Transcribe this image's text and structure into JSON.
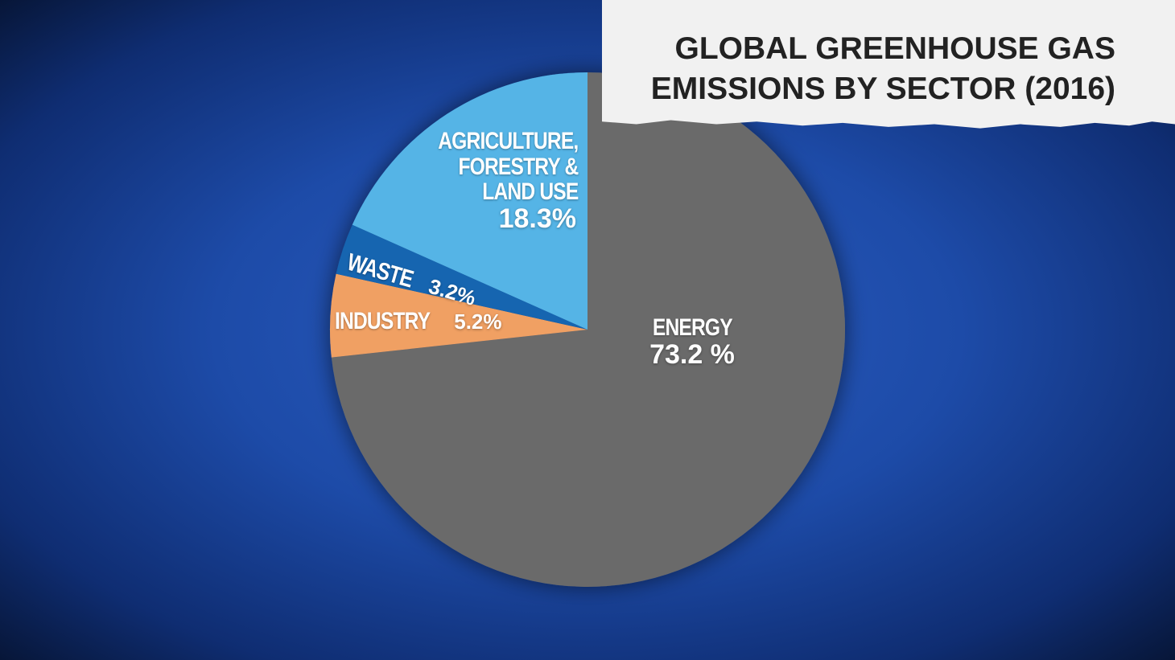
{
  "chart_data": {
    "type": "pie",
    "title": "GLOBAL GREENHOUSE GAS EMISSIONS BY SECTOR (2016)",
    "categories": [
      "ENERGY",
      "INDUSTRY",
      "WASTE",
      "AGRICULTURE, FORESTRY & LAND USE"
    ],
    "values": [
      73.2,
      5.2,
      3.2,
      18.3
    ],
    "value_labels": [
      "73.2 %",
      "5.2%",
      "3.2%",
      "18.3%"
    ],
    "colors": [
      "#6b6b6b",
      "#f0a063",
      "#1565b0",
      "#55b4e6"
    ]
  }
}
